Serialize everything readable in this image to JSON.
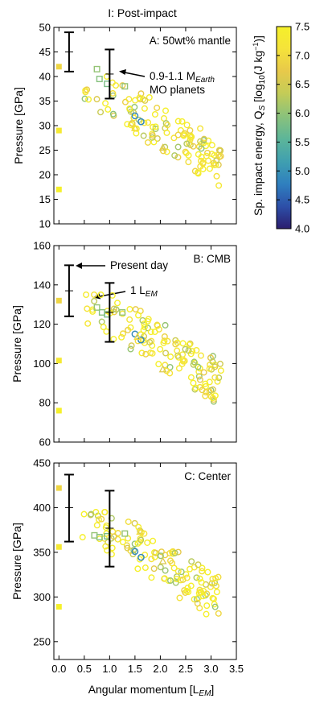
{
  "figure": {
    "title": "I: Post-impact",
    "xlabel": "Angular momentum [L",
    "xlabel_sub": "EM",
    "xlabel_end": "]",
    "xticks": [
      "0.0",
      "0.5",
      "1.0",
      "1.5",
      "2.0",
      "2.5",
      "3.0",
      "3.5"
    ],
    "colorbar": {
      "label": "Sp. impact energy, Q",
      "label_sub": "S",
      "label_units": " [log",
      "label_units_sub": "10",
      "label_units_end": "(J kg",
      "label_units_sup": "−1",
      "label_tail": ")]",
      "ticks": [
        "7.5",
        "7.0",
        "6.5",
        "6.0",
        "5.5",
        "5.0",
        "4.5",
        "4.0"
      ],
      "range": [
        4.0,
        7.5
      ],
      "colors": [
        "#2b1d6e",
        "#2d4fa8",
        "#2f7fbf",
        "#3f9fb0",
        "#5bb59a",
        "#8cc27a",
        "#c4cc57",
        "#e8c94a",
        "#f5e33a",
        "#f5f02a"
      ]
    }
  },
  "chart_data": [
    {
      "type": "scatter",
      "panel_label": "A: 50wt% mantle",
      "ylabel": "Pressure [GPa]",
      "xlim": [
        -0.1,
        3.5
      ],
      "ylim": [
        10,
        50
      ],
      "yticks": [
        "10",
        "15",
        "20",
        "25",
        "30",
        "35",
        "40",
        "45",
        "50"
      ],
      "annotation": {
        "line1": "0.9-1.1 M",
        "line1_sub": "Earth",
        "line2": "MO planets"
      },
      "errorbars": [
        {
          "x": 0.2,
          "y": 45,
          "low": 41,
          "high": 49
        },
        {
          "x": 1.0,
          "y": 40.5,
          "low": 35.5,
          "high": 45.5
        }
      ],
      "squares_filled": [
        {
          "x": 0.0,
          "y": 42,
          "q": 6.9
        },
        {
          "x": 0.0,
          "y": 29,
          "q": 7.3
        },
        {
          "x": 0.0,
          "y": 17,
          "q": 7.5
        }
      ],
      "squares_open": [
        {
          "x": 0.75,
          "y": 41.5,
          "q": 6.0
        },
        {
          "x": 0.8,
          "y": 39.5,
          "q": 5.9
        },
        {
          "x": 0.95,
          "y": 38.5,
          "q": 5.8
        },
        {
          "x": 1.3,
          "y": 38,
          "q": 6.0
        }
      ],
      "triangles": [
        {
          "x": 1.5,
          "y": 29.5,
          "q": 7.0
        },
        {
          "x": 2.05,
          "y": 25.5,
          "q": 6.6
        }
      ]
    },
    {
      "type": "scatter",
      "panel_label": "B: CMB",
      "ylabel": "Pressure [GPa]",
      "xlim": [
        -0.1,
        3.5
      ],
      "ylim": [
        60,
        160
      ],
      "yticks": [
        "60",
        "80",
        "100",
        "120",
        "140",
        "160"
      ],
      "annotation": {
        "line1": "Present day",
        "line2": "1 L",
        "line2_sub": "EM"
      },
      "errorbars": [
        {
          "x": 0.2,
          "y": 137,
          "low": 124,
          "high": 150
        },
        {
          "x": 1.0,
          "y": 126,
          "low": 111,
          "high": 141
        }
      ],
      "squares_filled": [
        {
          "x": 0.0,
          "y": 132,
          "q": 6.9
        },
        {
          "x": 0.0,
          "y": 101.5,
          "q": 7.3
        },
        {
          "x": 0.0,
          "y": 76,
          "q": 7.5
        }
      ],
      "squares_open": [
        {
          "x": 0.75,
          "y": 128.5,
          "q": 6.0
        },
        {
          "x": 0.85,
          "y": 126,
          "q": 5.9
        },
        {
          "x": 0.95,
          "y": 125,
          "q": 5.8
        },
        {
          "x": 1.25,
          "y": 126,
          "q": 6.0
        }
      ],
      "triangles": [
        {
          "x": 1.55,
          "y": 113.5,
          "q": 7.0
        },
        {
          "x": 2.05,
          "y": 97,
          "q": 6.6
        }
      ]
    },
    {
      "type": "scatter",
      "panel_label": "C: Center",
      "ylabel": "Pressure [GPa]",
      "xlim": [
        -0.1,
        3.5
      ],
      "ylim": [
        230,
        450
      ],
      "yticks": [
        "250",
        "300",
        "350",
        "400",
        "450"
      ],
      "errorbars": [
        {
          "x": 0.2,
          "y": 400,
          "low": 362,
          "high": 437
        },
        {
          "x": 1.0,
          "y": 377,
          "low": 334,
          "high": 419
        }
      ],
      "squares_filled": [
        {
          "x": 0.0,
          "y": 422,
          "q": 6.9
        },
        {
          "x": 0.0,
          "y": 356,
          "q": 7.3
        },
        {
          "x": 0.0,
          "y": 289,
          "q": 7.5
        }
      ],
      "squares_open": [
        {
          "x": 0.7,
          "y": 369,
          "q": 6.0
        },
        {
          "x": 0.8,
          "y": 367,
          "q": 5.9
        },
        {
          "x": 0.95,
          "y": 368,
          "q": 5.8
        },
        {
          "x": 1.3,
          "y": 371,
          "q": 6.0
        }
      ],
      "triangles": [
        {
          "x": 1.6,
          "y": 373,
          "q": 7.0
        },
        {
          "x": 2.05,
          "y": 340,
          "q": 6.6
        }
      ]
    }
  ]
}
